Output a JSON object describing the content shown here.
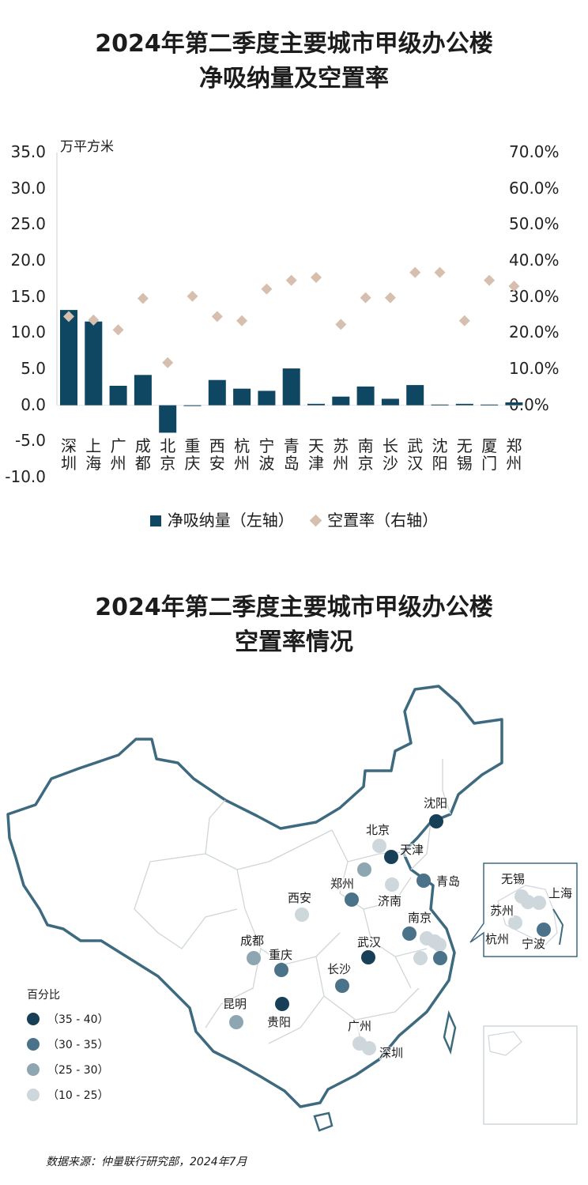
{
  "chart1": {
    "title_line1": "2024年第二季度主要城市甲级办公楼",
    "title_line2": "净吸纳量及空置率",
    "unit": "万平方米",
    "left_ticks": [
      "35.0",
      "30.0",
      "25.0",
      "20.0",
      "15.0",
      "10.0",
      "5.0",
      "0.0",
      "-5.0",
      "-10.0"
    ],
    "right_ticks": [
      "70.0%",
      "60.0%",
      "50.0%",
      "40.0%",
      "30.0%",
      "20.0%",
      "10.0%",
      "0.0%"
    ],
    "legend": {
      "bar": "净吸纳量（左轴）",
      "diamond": "空置率（右轴）"
    }
  },
  "chart_data": {
    "type": "bar",
    "categories": [
      "深圳",
      "上海",
      "广州",
      "成都",
      "北京",
      "重庆",
      "西安",
      "杭州",
      "宁波",
      "青岛",
      "天津",
      "苏州",
      "南京",
      "长沙",
      "武汉",
      "沈阳",
      "无锡",
      "厦门",
      "郑州"
    ],
    "series": [
      {
        "name": "净吸纳量（左轴）",
        "type": "bar",
        "axis": "left",
        "values": [
          13.2,
          11.6,
          2.7,
          4.2,
          -3.8,
          -0.1,
          3.5,
          2.3,
          2.0,
          5.1,
          0.2,
          1.2,
          2.6,
          0.9,
          2.8,
          0.1,
          0.2,
          0.1,
          0.4
        ]
      },
      {
        "name": "空置率（右轴）",
        "type": "scatter",
        "axis": "right",
        "values": [
          24.6,
          23.6,
          20.9,
          29.6,
          11.8,
          30.2,
          24.6,
          23.4,
          32.2,
          34.6,
          35.4,
          22.4,
          29.8,
          29.8,
          36.8,
          36.8,
          23.4,
          34.6,
          33.0
        ]
      }
    ],
    "ylim_left": [
      -10,
      35
    ],
    "ylim_right": [
      0,
      70
    ],
    "grid": false,
    "legend_position": "bottom"
  },
  "colors": {
    "bar": "#0f4661",
    "diamond": "#d6bfae",
    "axis": "#cfcfcf",
    "c1": "#173f58",
    "c2": "#4a7288",
    "c3": "#8ea6b2",
    "c4": "#cdd7dc",
    "border": "#3d6a7e",
    "province": "#cfd6da"
  },
  "chart2": {
    "title_line1": "2024年第二季度主要城市甲级办公楼",
    "title_line2": "空置率情况",
    "legend_title": "百分比",
    "legend_items": [
      "（35 - 40）",
      "（30 - 35）",
      "（25 - 30）",
      "（10 - 25）"
    ]
  },
  "map_labels": {
    "shenyang": "沈阳",
    "beijing": "北京",
    "tianjin": "天津",
    "qingdao": "青岛",
    "zhengzhou": "郑州",
    "jinan": "济南",
    "xian": "西安",
    "nanjing": "南京",
    "wuhan": "武汉",
    "chengdu": "成都",
    "chongqing": "重庆",
    "changsha": "长沙",
    "kunming": "昆明",
    "guiyang": "贵阳",
    "guangzhou": "广州",
    "shenzhen": "深圳",
    "wuxi": "无锡",
    "shanghai": "上海",
    "suzhou": "苏州",
    "hangzhou": "杭州",
    "ningbo": "宁波"
  },
  "source": "数据来源：仲量联行研究部，2024年7月"
}
